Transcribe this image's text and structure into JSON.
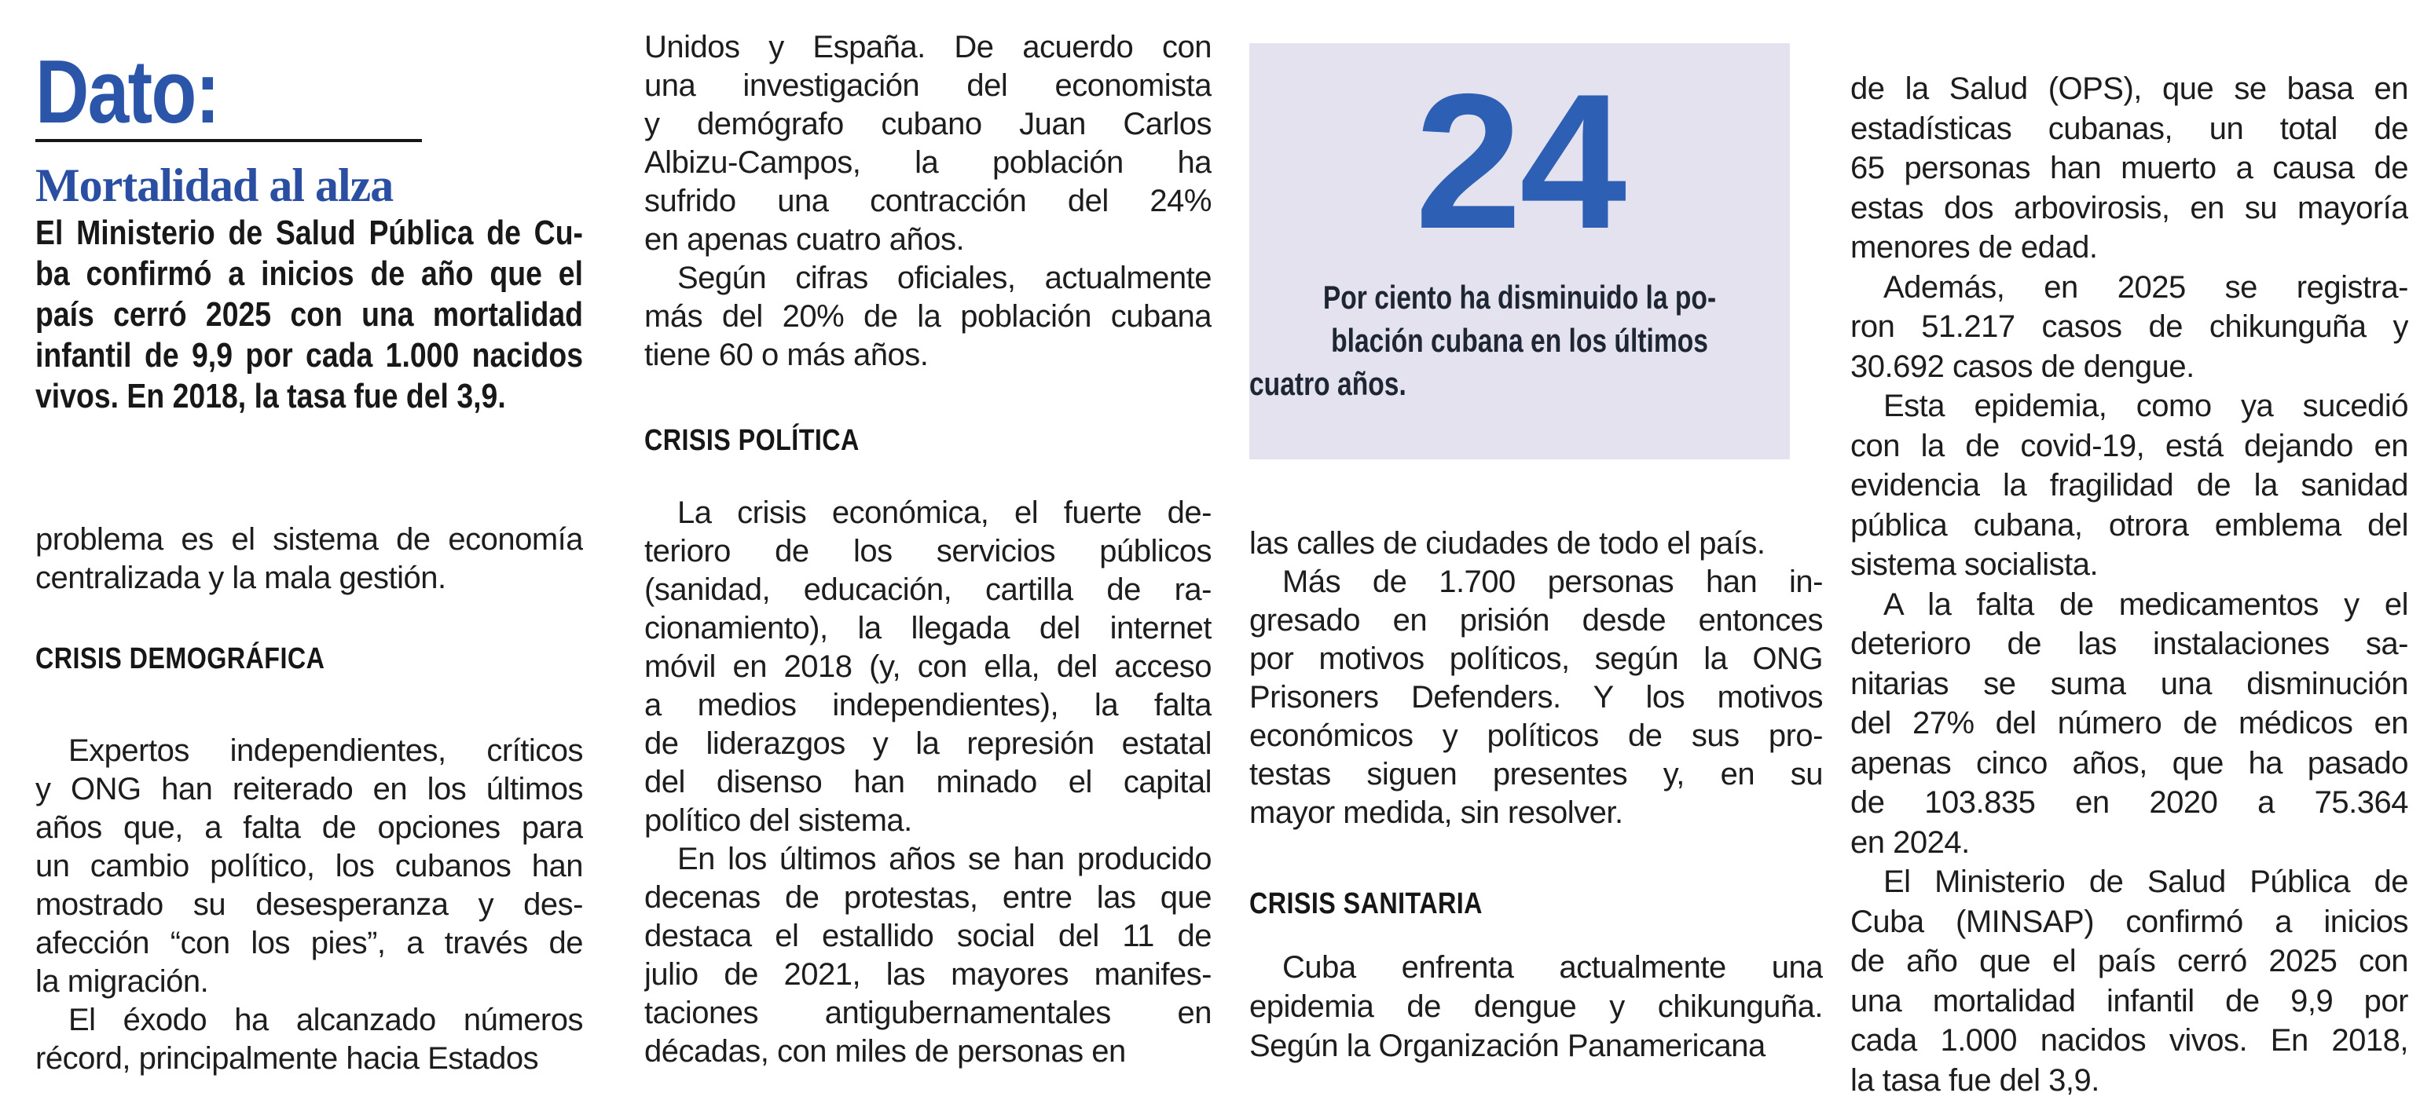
{
  "colors": {
    "accent_blue": "#2b55a9",
    "kicker_blue": "#2a4fa2",
    "number_blue": "#2d5fb4",
    "box_background": "#e3e2ee",
    "caption_dark": "#1f2633",
    "body_text": "#1d1d1d"
  },
  "brand": {
    "label": "Dato:"
  },
  "kicker": {
    "label": "Mortalidad al alza"
  },
  "stat": {
    "value": "24",
    "caption": [
      {
        "indent": false,
        "lines": [
          "Por ciento ha disminuido la po-",
          "blación cubana en los últimos",
          "cuatro años."
        ]
      }
    ]
  },
  "columns": {
    "col1": {
      "lead": [
        {
          "indent": false,
          "lines": [
            "El Ministerio de Salud Pública de Cu-",
            "ba confirmó a inicios de año que el",
            "país cerró 2025 con una mortalidad",
            "infantil de 9,9 por cada 1.000 nacidos",
            "vivos. En 2018, la tasa fue del 3,9."
          ]
        }
      ],
      "p1": [
        {
          "indent": false,
          "lines": [
            "problema es el sistema de economía",
            "centralizada y la mala gestión."
          ]
        }
      ],
      "heading": "CRISIS DEMOGRÁFICA",
      "body": [
        {
          "indent": true,
          "lines": [
            "Expertos independientes, críticos",
            "y ONG han reiterado en los últimos",
            "años que, a falta de opciones para",
            "un cambio político, los cubanos han",
            "mostrado su desesperanza y des-",
            "afección “con los pies”, a través de",
            "la migración."
          ]
        },
        {
          "indent": true,
          "lines": [
            "El éxodo ha alcanzado números",
            "récord, principalmente hacia Estados"
          ]
        }
      ]
    },
    "col2": {
      "body_top": [
        {
          "indent": false,
          "lines": [
            "Unidos y España. De acuerdo con",
            "una investigación del economista",
            "y demógrafo cubano Juan Carlos",
            "Albizu-Campos, la población ha",
            "sufrido una contracción del 24%",
            "en apenas cuatro años."
          ]
        },
        {
          "indent": true,
          "lines": [
            "Según cifras oficiales, actualmente",
            "más del 20% de la población cubana",
            "tiene 60 o más años."
          ]
        }
      ],
      "heading": "CRISIS POLÍTICA",
      "body_bottom": [
        {
          "indent": true,
          "lines": [
            "La crisis económica, el fuerte de-",
            "terioro de los servicios públicos",
            "(sanidad, educación, cartilla de ra-",
            "cionamiento), la llegada del internet",
            "móvil en 2018 (y, con ella, del acceso",
            "a medios independientes), la falta",
            "de liderazgos y la represión estatal",
            "del disenso han minado el capital",
            "político del sistema."
          ]
        },
        {
          "indent": true,
          "lines": [
            "En los últimos años se han producido",
            "decenas de protestas, entre las que",
            "destaca el estallido social del 11 de",
            "julio de 2021, las mayores manifes-",
            "taciones antigubernamentales en",
            "décadas, con miles de personas en"
          ]
        }
      ]
    },
    "col3": {
      "body_top": [
        {
          "indent": false,
          "lines": [
            "las calles de ciudades de todo el país."
          ]
        },
        {
          "indent": true,
          "lines": [
            "Más de 1.700 personas han in-",
            "gresado en prisión desde entonces",
            "por motivos políticos, según la ONG",
            "Prisoners Defenders. Y los motivos",
            "económicos y políticos de sus pro-",
            "testas siguen presentes y, en su",
            "mayor medida, sin resolver."
          ]
        }
      ],
      "heading": "CRISIS SANITARIA",
      "body_bottom": [
        {
          "indent": true,
          "lines": [
            "Cuba enfrenta actualmente una",
            "epidemia de dengue y chikunguña.",
            "Según la Organización Panamericana"
          ]
        }
      ]
    },
    "col4": {
      "body": [
        {
          "indent": false,
          "lines": [
            "de la Salud (OPS), que se basa en",
            "estadísticas cubanas, un total de",
            "65 personas han muerto a causa de",
            "estas dos arbovirosis, en su mayoría",
            "menores de edad."
          ]
        },
        {
          "indent": true,
          "lines": [
            "Además, en 2025 se registra-",
            "ron 51.217 casos de chikunguña y",
            "30.692 casos de dengue."
          ]
        },
        {
          "indent": true,
          "lines": [
            "Esta epidemia, como ya sucedió",
            "con la de covid-19, está dejando en",
            "evidencia la fragilidad de la sanidad",
            "pública cubana, otrora emblema del",
            "sistema socialista."
          ]
        },
        {
          "indent": true,
          "lines": [
            "A la falta de medicamentos y el",
            "deterioro de las instalaciones sa-",
            "nitarias se suma una disminución",
            "del 27% del número de médicos en",
            "apenas cinco años, que ha pasado",
            "de 103.835 en 2020 a 75.364",
            "en 2024."
          ]
        },
        {
          "indent": true,
          "lines": [
            "El Ministerio de Salud Pública de",
            "Cuba (MINSAP) confirmó a inicios",
            "de año que el país cerró 2025 con",
            "una mortalidad infantil de 9,9 por",
            "cada 1.000 nacidos vivos. En 2018,",
            "la tasa fue del 3,9."
          ]
        }
      ]
    }
  }
}
